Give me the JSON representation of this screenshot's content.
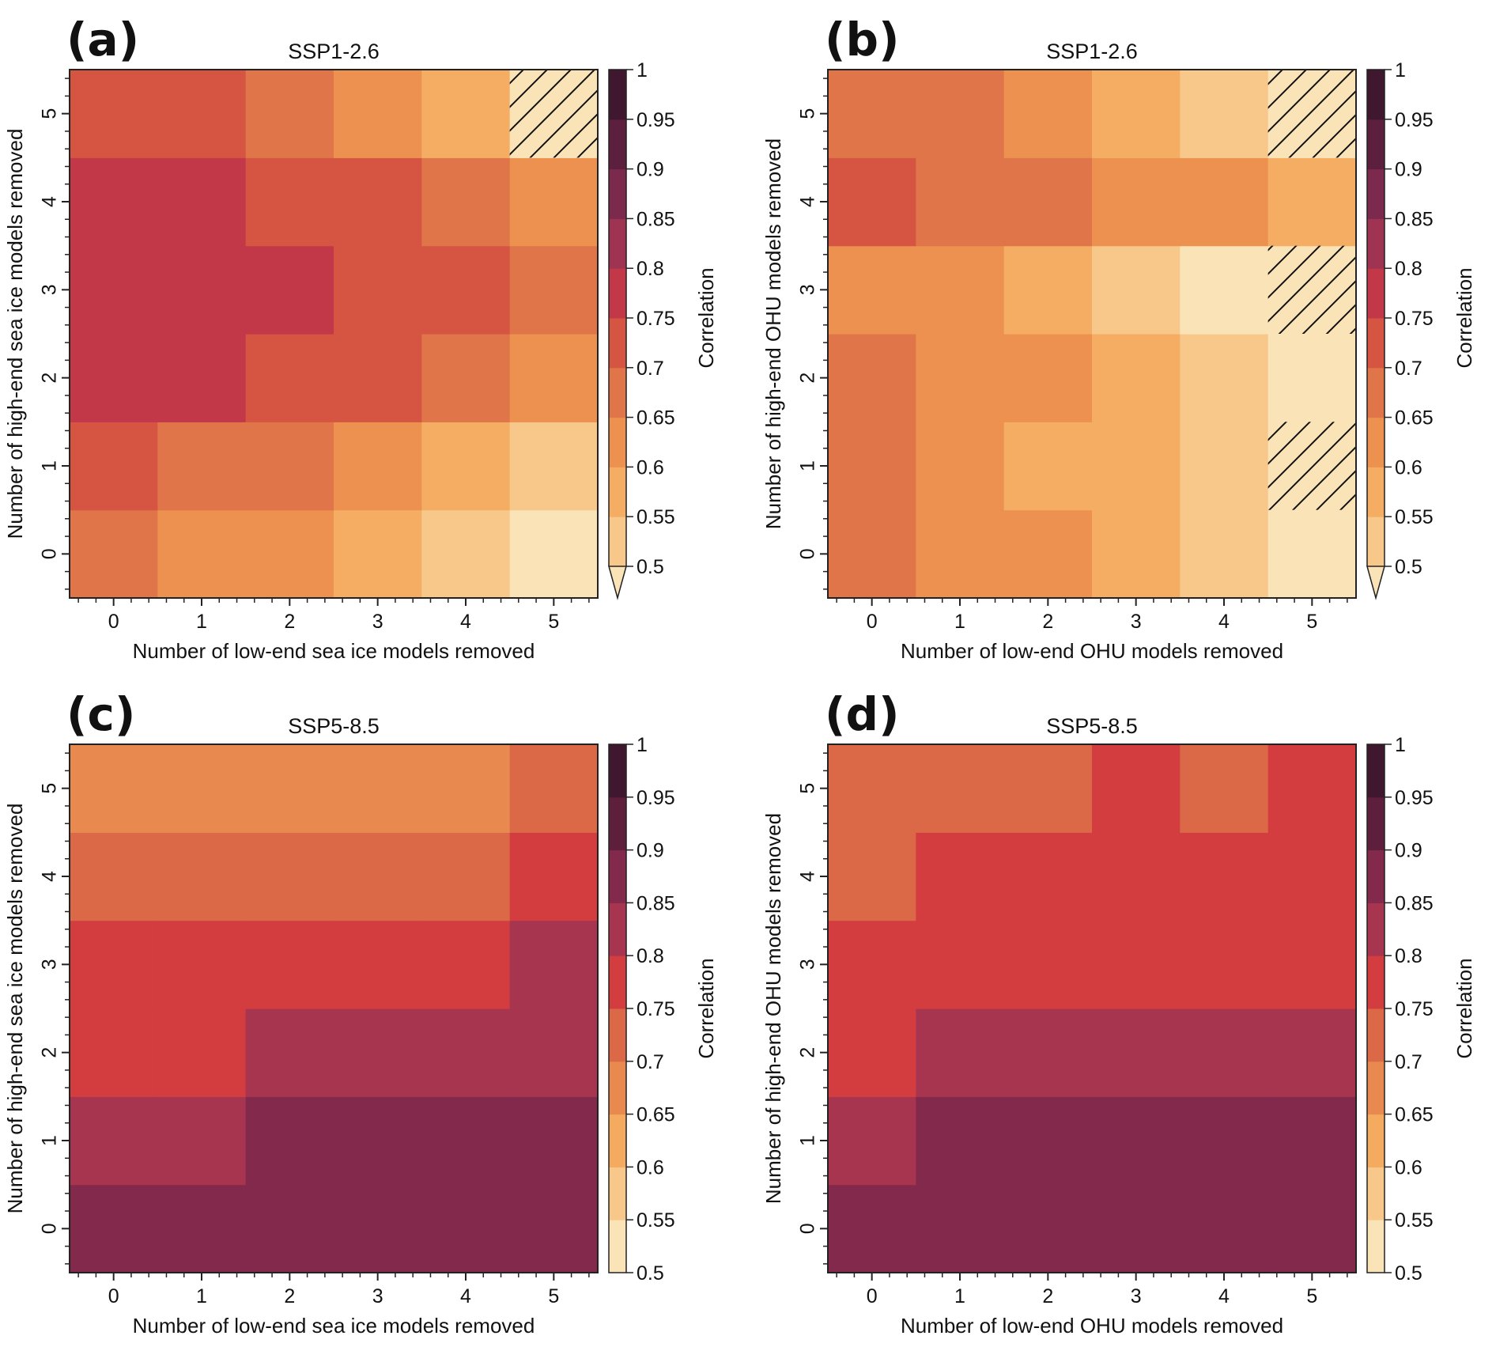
{
  "figure": {
    "colorbar_label": "Correlation"
  },
  "colormaps": {
    "top": {
      "boundaries": [
        0.5,
        0.55,
        0.6,
        0.65,
        0.7,
        0.75,
        0.8,
        0.85,
        0.9,
        0.95,
        1.0
      ],
      "colors": [
        "#F8C88A",
        "#F4AD63",
        "#EC914F",
        "#DF7549",
        "#D55542",
        "#C33849",
        "#9E3352",
        "#7B2A4D",
        "#5C1F3E",
        "#3F1830"
      ],
      "under_color": "#FBE3B8",
      "extend": "min",
      "tick_labels": [
        "0.5",
        "0.55",
        "0.6",
        "0.65",
        "0.7",
        "0.75",
        "0.8",
        "0.85",
        "0.9",
        "0.95",
        "1"
      ]
    },
    "bottom": {
      "boundaries": [
        0.5,
        0.55,
        0.6,
        0.65,
        0.7,
        0.75,
        0.8,
        0.85,
        0.9,
        0.95,
        1.0
      ],
      "colors": [
        "#FBE3B8",
        "#F8C88A",
        "#F4AA5F",
        "#E8894F",
        "#DB6847",
        "#D33D3F",
        "#A73550",
        "#82294C",
        "#5E1F3D",
        "#3F1830"
      ],
      "under_color": null,
      "extend": "neither",
      "tick_labels": [
        "0.5",
        "0.55",
        "0.6",
        "0.65",
        "0.7",
        "0.75",
        "0.8",
        "0.85",
        "0.9",
        "0.95",
        "1"
      ]
    }
  },
  "chart_data": [
    {
      "type": "heatmap",
      "panel": "(a)",
      "title": "SSP1-2.6",
      "xlabel": "Number of low-end sea ice models removed",
      "ylabel": "Number of high-end sea ice models removed",
      "colorbar_label": "Correlation",
      "colormap": "top",
      "x": [
        0,
        1,
        2,
        3,
        4,
        5
      ],
      "y": [
        0,
        1,
        2,
        3,
        4,
        5
      ],
      "x_tick_labels": [
        "0",
        "1",
        "2",
        "3",
        "4",
        "5"
      ],
      "y_tick_labels": [
        "0",
        "1",
        "2",
        "3",
        "4",
        "5"
      ],
      "z_note": "values are bin midpoints of the discrete color classes (rows indexed by y)",
      "z": [
        [
          0.675,
          0.625,
          0.625,
          0.575,
          0.525,
          0.48
        ],
        [
          0.725,
          0.675,
          0.675,
          0.625,
          0.575,
          0.525
        ],
        [
          0.775,
          0.775,
          0.725,
          0.725,
          0.675,
          0.625
        ],
        [
          0.775,
          0.775,
          0.775,
          0.725,
          0.725,
          0.675
        ],
        [
          0.775,
          0.775,
          0.725,
          0.725,
          0.675,
          0.625
        ],
        [
          0.725,
          0.725,
          0.675,
          0.625,
          0.575,
          0.48
        ]
      ],
      "hatched": [
        [
          5,
          5
        ]
      ],
      "clim": [
        0.5,
        1.0
      ]
    },
    {
      "type": "heatmap",
      "panel": "(b)",
      "title": "SSP1-2.6",
      "xlabel": "Number of low-end OHU models removed",
      "ylabel": "Number of high-end OHU models removed",
      "colorbar_label": "Correlation",
      "colormap": "top",
      "x": [
        0,
        1,
        2,
        3,
        4,
        5
      ],
      "y": [
        0,
        1,
        2,
        3,
        4,
        5
      ],
      "x_tick_labels": [
        "0",
        "1",
        "2",
        "3",
        "4",
        "5"
      ],
      "y_tick_labels": [
        "0",
        "1",
        "2",
        "3",
        "4",
        "5"
      ],
      "z_note": "values are bin midpoints of the discrete color classes (rows indexed by y)",
      "z": [
        [
          0.675,
          0.625,
          0.625,
          0.575,
          0.525,
          0.48
        ],
        [
          0.675,
          0.625,
          0.575,
          0.575,
          0.525,
          0.48
        ],
        [
          0.675,
          0.625,
          0.625,
          0.575,
          0.525,
          0.48
        ],
        [
          0.625,
          0.625,
          0.575,
          0.525,
          0.48,
          0.48
        ],
        [
          0.725,
          0.675,
          0.675,
          0.625,
          0.625,
          0.575
        ],
        [
          0.675,
          0.675,
          0.625,
          0.575,
          0.525,
          0.48
        ]
      ],
      "hatched": [
        [
          5,
          5
        ],
        [
          5,
          3
        ],
        [
          5,
          1
        ]
      ],
      "clim": [
        0.5,
        1.0
      ]
    },
    {
      "type": "heatmap",
      "panel": "(c)",
      "title": "SSP5-8.5",
      "xlabel": "Number of low-end sea ice models removed",
      "ylabel": "Number of high-end sea ice models removed",
      "colorbar_label": "Correlation",
      "colormap": "bottom",
      "x": [
        0,
        1,
        2,
        3,
        4,
        5
      ],
      "y": [
        0,
        1,
        2,
        3,
        4,
        5
      ],
      "x_tick_labels": [
        "0",
        "1",
        "2",
        "3",
        "4",
        "5"
      ],
      "y_tick_labels": [
        "0",
        "1",
        "2",
        "3",
        "4",
        "5"
      ],
      "z_note": "values are bin midpoints of the discrete color classes (rows indexed by y)",
      "z": [
        [
          0.875,
          0.875,
          0.875,
          0.875,
          0.875,
          0.875
        ],
        [
          0.825,
          0.825,
          0.875,
          0.875,
          0.875,
          0.875
        ],
        [
          0.775,
          0.775,
          0.825,
          0.825,
          0.825,
          0.825
        ],
        [
          0.775,
          0.775,
          0.775,
          0.775,
          0.775,
          0.825
        ],
        [
          0.725,
          0.725,
          0.725,
          0.725,
          0.725,
          0.775
        ],
        [
          0.675,
          0.675,
          0.675,
          0.675,
          0.675,
          0.725
        ]
      ],
      "hatched": [],
      "clim": [
        0.5,
        1.0
      ]
    },
    {
      "type": "heatmap",
      "panel": "(d)",
      "title": "SSP5-8.5",
      "xlabel": "Number of low-end OHU models removed",
      "ylabel": "Number of high-end OHU models removed",
      "colorbar_label": "Correlation",
      "colormap": "bottom",
      "x": [
        0,
        1,
        2,
        3,
        4,
        5
      ],
      "y": [
        0,
        1,
        2,
        3,
        4,
        5
      ],
      "x_tick_labels": [
        "0",
        "1",
        "2",
        "3",
        "4",
        "5"
      ],
      "y_tick_labels": [
        "0",
        "1",
        "2",
        "3",
        "4",
        "5"
      ],
      "z_note": "values are bin midpoints of the discrete color classes (rows indexed by y)",
      "z": [
        [
          0.875,
          0.875,
          0.875,
          0.875,
          0.875,
          0.875
        ],
        [
          0.825,
          0.875,
          0.875,
          0.875,
          0.875,
          0.875
        ],
        [
          0.775,
          0.825,
          0.825,
          0.825,
          0.825,
          0.825
        ],
        [
          0.775,
          0.775,
          0.775,
          0.775,
          0.775,
          0.775
        ],
        [
          0.725,
          0.775,
          0.775,
          0.775,
          0.775,
          0.775
        ],
        [
          0.725,
          0.725,
          0.725,
          0.775,
          0.725,
          0.775
        ]
      ],
      "hatched": [],
      "clim": [
        0.5,
        1.0
      ]
    }
  ]
}
